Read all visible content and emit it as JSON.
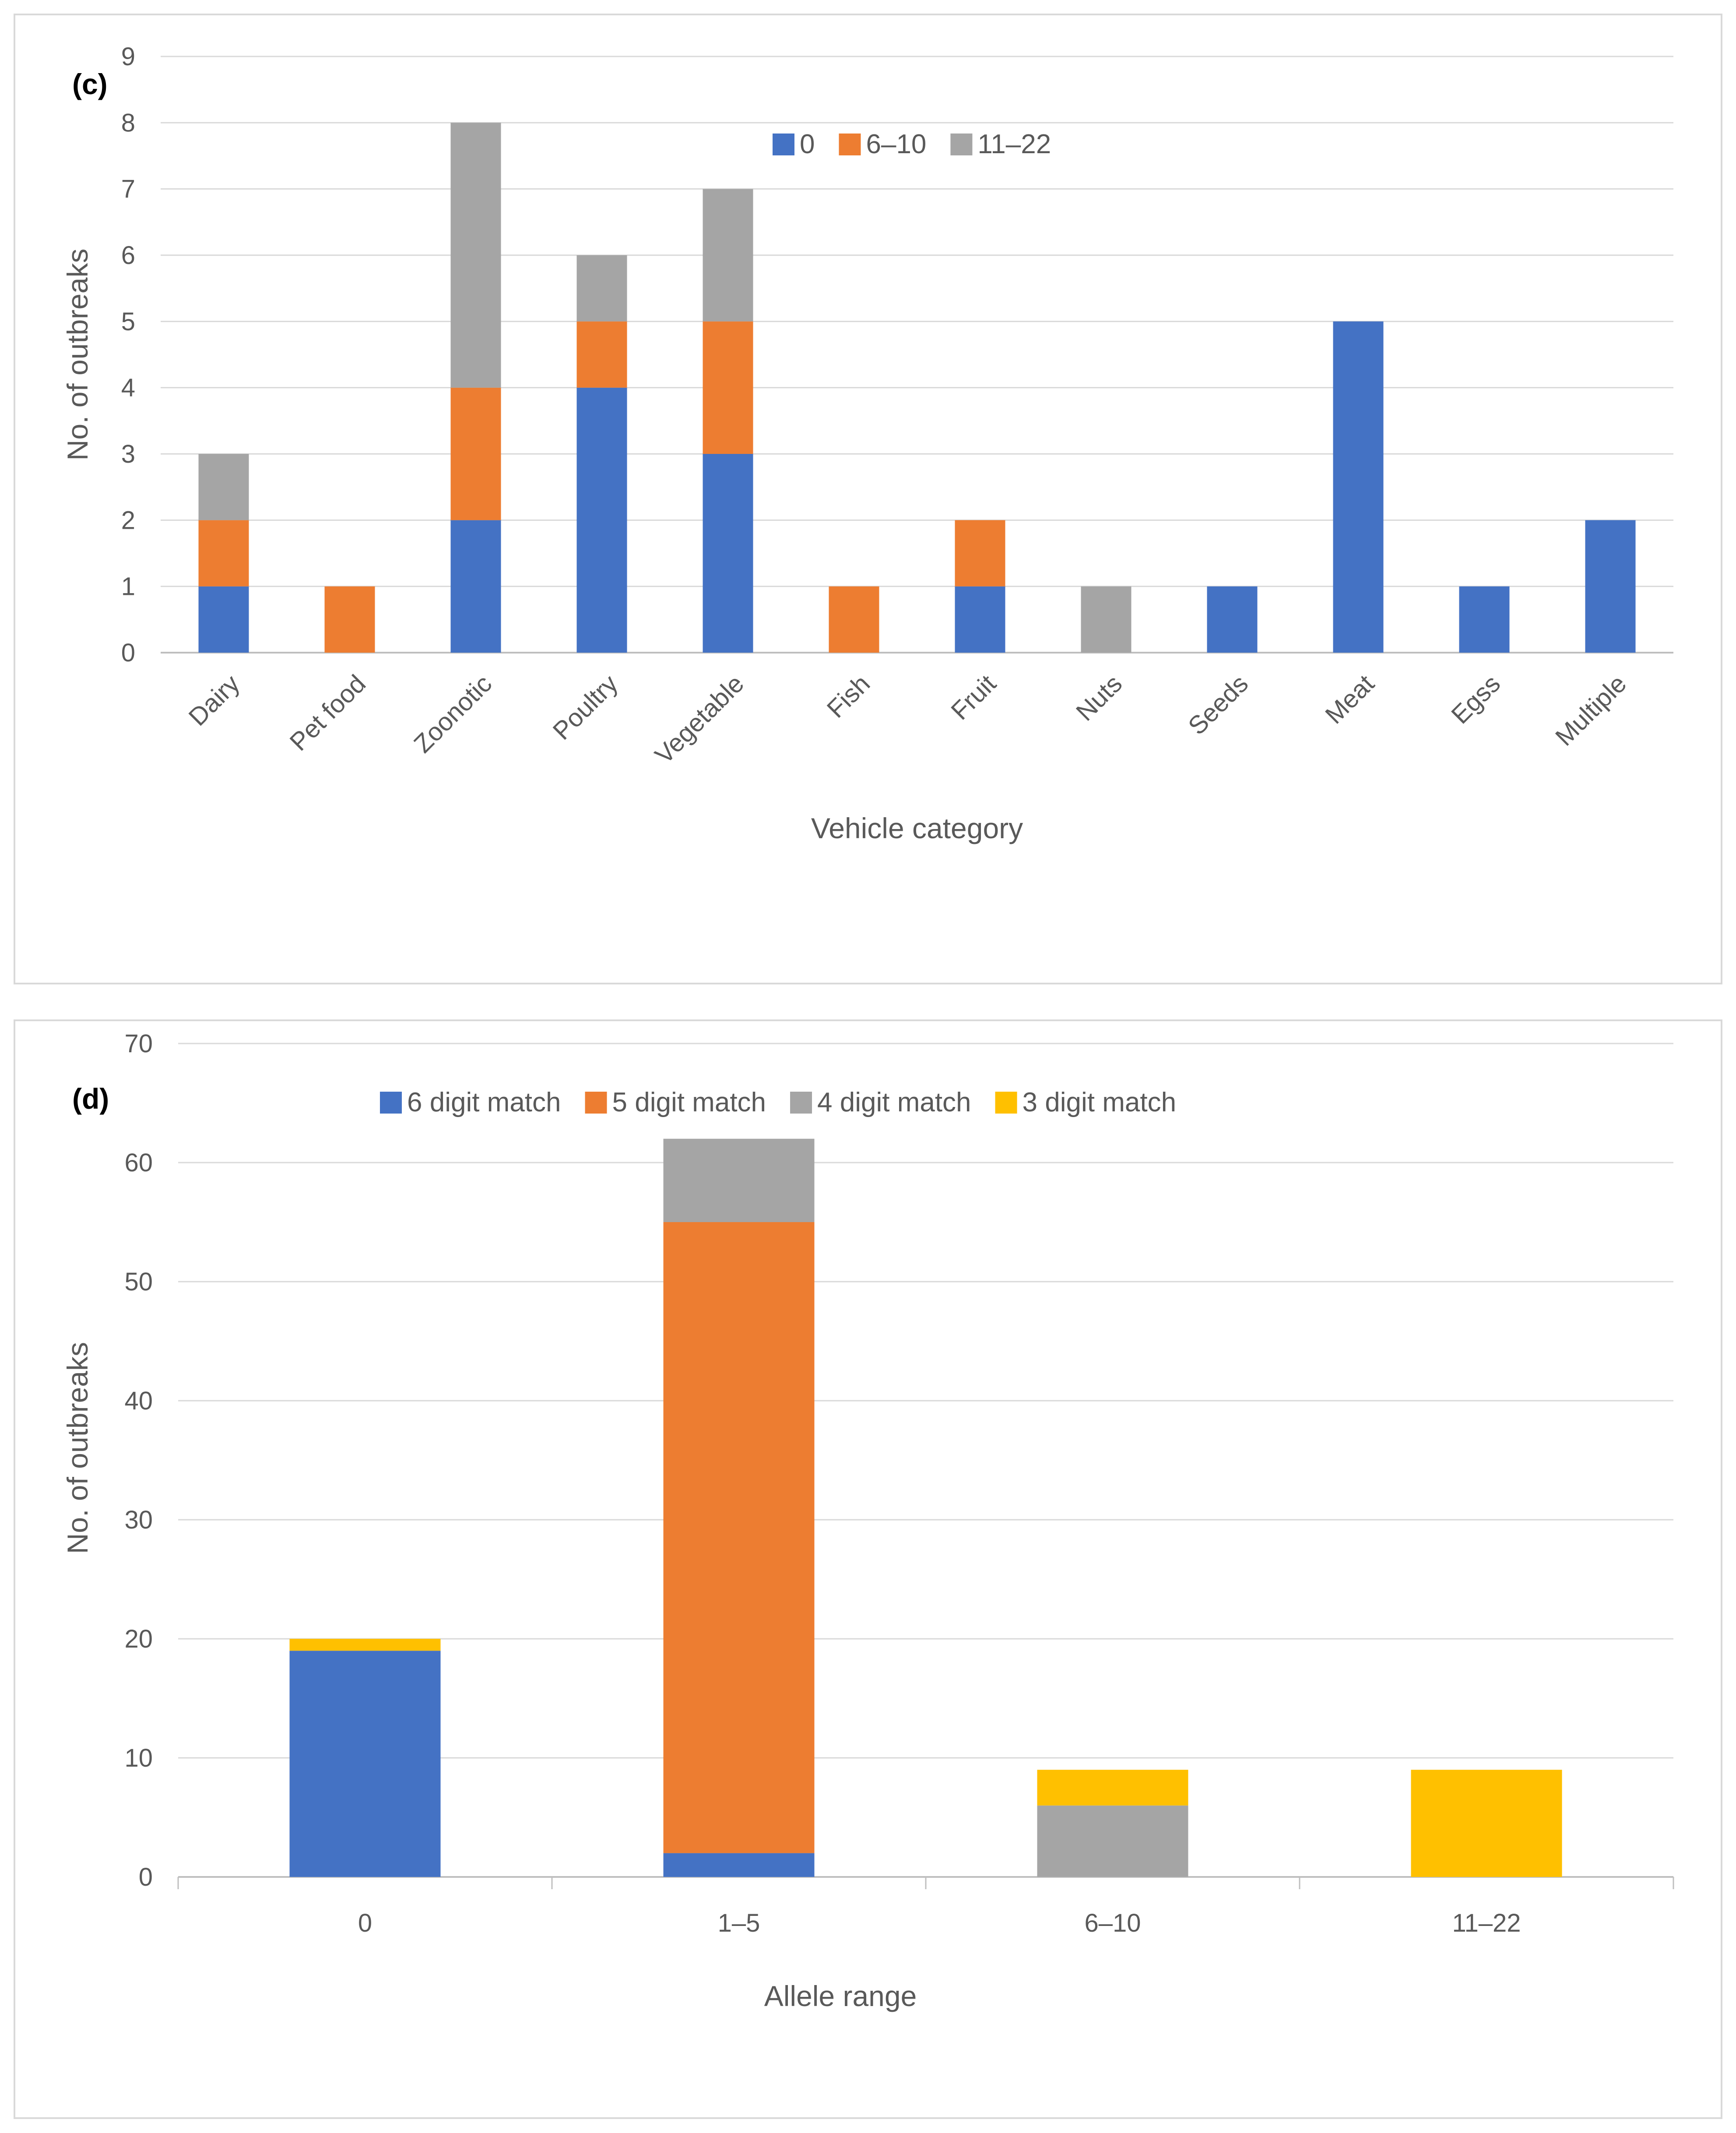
{
  "colors": {
    "blue": "#4472c4",
    "orange": "#ed7d31",
    "gray": "#a5a5a5",
    "yellow": "#ffc000",
    "grid": "#d9d9d9",
    "text": "#595959"
  },
  "chart_data": [
    {
      "panel_label": "(c)",
      "type": "bar",
      "stacked": true,
      "title": "",
      "xlabel": "Vehicle category",
      "ylabel": "No. of outbreaks",
      "ylim": [
        0,
        9
      ],
      "yticks": [
        0,
        1,
        2,
        3,
        4,
        5,
        6,
        7,
        8,
        9
      ],
      "grid": true,
      "legend_position": "top-center",
      "categories": [
        "Dairy",
        "Pet food",
        "Zoonotic",
        "Poultry",
        "Vegetable",
        "Fish",
        "Fruit",
        "Nuts",
        "Seeds",
        "Meat",
        "Egss",
        "Multiple"
      ],
      "series": [
        {
          "name": "0",
          "color": "#4472c4",
          "values": [
            1,
            0,
            2,
            4,
            3,
            0,
            1,
            0,
            1,
            5,
            1,
            2
          ]
        },
        {
          "name": "6–10",
          "color": "#ed7d31",
          "values": [
            1,
            1,
            2,
            1,
            2,
            1,
            1,
            0,
            0,
            0,
            0,
            0
          ]
        },
        {
          "name": "11–22",
          "color": "#a5a5a5",
          "values": [
            1,
            0,
            4,
            1,
            2,
            0,
            0,
            1,
            0,
            0,
            0,
            0
          ]
        }
      ]
    },
    {
      "panel_label": "(d)",
      "type": "bar",
      "stacked": true,
      "title": "",
      "xlabel": "Allele range",
      "ylabel": "No. of outbreaks",
      "ylim": [
        0,
        70
      ],
      "yticks": [
        0,
        10,
        20,
        30,
        40,
        50,
        60,
        70
      ],
      "grid": true,
      "legend_position": "top-center",
      "categories": [
        "0",
        "1–5",
        "6–10",
        "11–22"
      ],
      "series": [
        {
          "name": "6 digit match",
          "color": "#4472c4",
          "values": [
            19,
            2,
            0,
            0
          ]
        },
        {
          "name": "5 digit match",
          "color": "#ed7d31",
          "values": [
            0,
            53,
            0,
            0
          ]
        },
        {
          "name": "4 digit match",
          "color": "#a5a5a5",
          "values": [
            0,
            7,
            6,
            0
          ]
        },
        {
          "name": "3 digit match",
          "color": "#ffc000",
          "values": [
            1,
            0,
            3,
            9
          ]
        }
      ]
    }
  ]
}
